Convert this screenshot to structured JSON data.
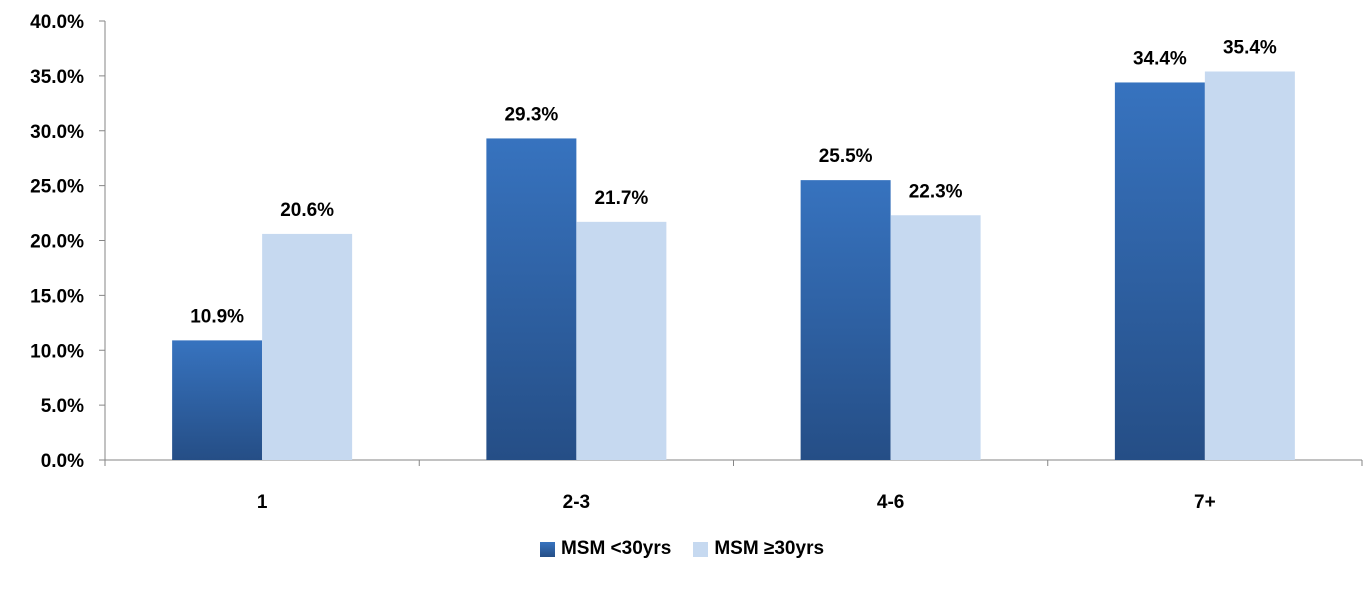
{
  "chart_data": {
    "type": "bar",
    "categories": [
      "1",
      "2-3",
      "4-6",
      "7+"
    ],
    "series": [
      {
        "name": "MSM <30yrs",
        "values": [
          10.9,
          29.3,
          25.5,
          34.4
        ],
        "labels": [
          "10.9%",
          "29.3%",
          "25.5%",
          "34.4%"
        ],
        "color": "#2E5FA0"
      },
      {
        "name": "MSM ≥30yrs",
        "values": [
          20.6,
          21.7,
          22.3,
          35.4
        ],
        "labels": [
          "20.6%",
          "21.7%",
          "22.3%",
          "35.4%"
        ],
        "color": "#C6D9F0"
      }
    ],
    "ylim": [
      0,
      40
    ],
    "yticks": [
      "0.0%",
      "5.0%",
      "10.0%",
      "15.0%",
      "20.0%",
      "25.0%",
      "30.0%",
      "35.0%",
      "40.0%"
    ],
    "xlabel": "",
    "ylabel": "",
    "grid": false,
    "legend_position": "bottom"
  }
}
